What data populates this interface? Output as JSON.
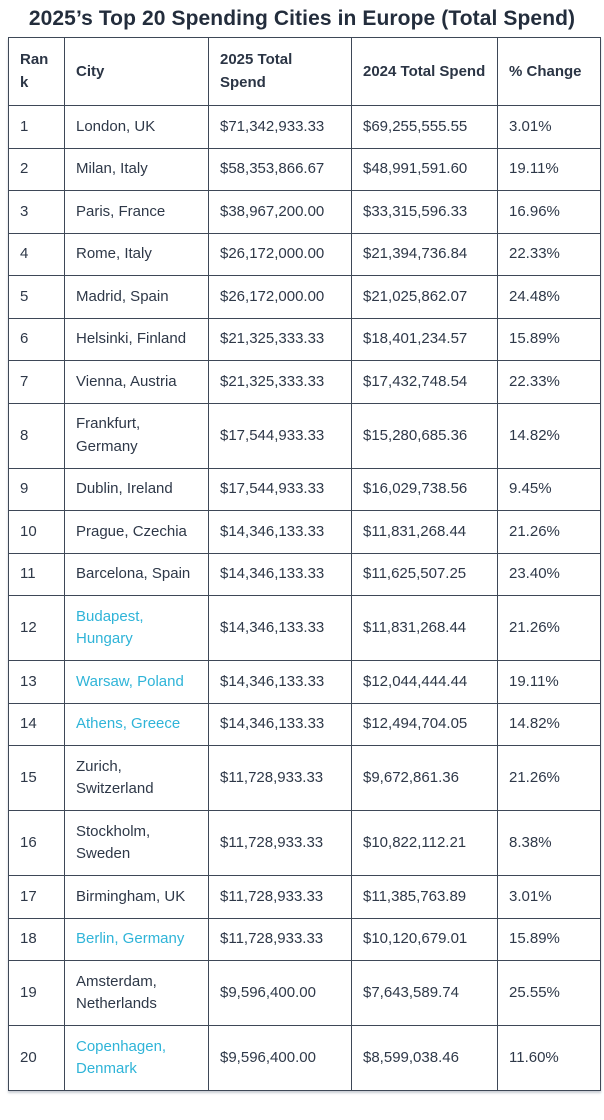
{
  "page_title": "2025’s Top 20 Spending Cities in Europe (Total Spend)",
  "colors": {
    "accent_link": "#2fb4d8",
    "text": "#2e3848",
    "border": "#3e4857",
    "background": "#ffffff"
  },
  "chart_data": {
    "type": "table",
    "title": "2025’s Top 20 Spending Cities in Europe (Total Spend)",
    "columns": [
      "Rank",
      "City",
      "2025 Total Spend",
      "2024 Total Spend",
      "% Change"
    ],
    "rows": [
      {
        "rank": 1,
        "city": "London, UK",
        "spend_2025": "$71,342,933.33",
        "spend_2024": "$69,255,555.55",
        "pct_change": "3.01%",
        "city_is_link": false,
        "city_wraps": false
      },
      {
        "rank": 2,
        "city": "Milan, Italy",
        "spend_2025": "$58,353,866.67",
        "spend_2024": "$48,991,591.60",
        "pct_change": "19.11%",
        "city_is_link": false,
        "city_wraps": false
      },
      {
        "rank": 3,
        "city": "Paris, France",
        "spend_2025": "$38,967,200.00",
        "spend_2024": "$33,315,596.33",
        "pct_change": "16.96%",
        "city_is_link": false,
        "city_wraps": false
      },
      {
        "rank": 4,
        "city": "Rome, Italy",
        "spend_2025": "$26,172,000.00",
        "spend_2024": "$21,394,736.84",
        "pct_change": "22.33%",
        "city_is_link": false,
        "city_wraps": false
      },
      {
        "rank": 5,
        "city": "Madrid, Spain",
        "spend_2025": "$26,172,000.00",
        "spend_2024": "$21,025,862.07",
        "pct_change": "24.48%",
        "city_is_link": false,
        "city_wraps": false
      },
      {
        "rank": 6,
        "city": "Helsinki, Finland",
        "spend_2025": "$21,325,333.33",
        "spend_2024": "$18,401,234.57",
        "pct_change": "15.89%",
        "city_is_link": false,
        "city_wraps": false
      },
      {
        "rank": 7,
        "city": "Vienna, Austria",
        "spend_2025": "$21,325,333.33",
        "spend_2024": "$17,432,748.54",
        "pct_change": "22.33%",
        "city_is_link": false,
        "city_wraps": false
      },
      {
        "rank": 8,
        "city": "Frankfurt, Germany",
        "spend_2025": "$17,544,933.33",
        "spend_2024": "$15,280,685.36",
        "pct_change": "14.82%",
        "city_is_link": false,
        "city_wraps": true
      },
      {
        "rank": 9,
        "city": "Dublin, Ireland",
        "spend_2025": "$17,544,933.33",
        "spend_2024": "$16,029,738.56",
        "pct_change": "9.45%",
        "city_is_link": false,
        "city_wraps": false
      },
      {
        "rank": 10,
        "city": "Prague, Czechia",
        "spend_2025": "$14,346,133.33",
        "spend_2024": "$11,831,268.44",
        "pct_change": "21.26%",
        "city_is_link": false,
        "city_wraps": false
      },
      {
        "rank": 11,
        "city": "Barcelona, Spain",
        "spend_2025": "$14,346,133.33",
        "spend_2024": "$11,625,507.25",
        "pct_change": "23.40%",
        "city_is_link": false,
        "city_wraps": false
      },
      {
        "rank": 12,
        "city": "Budapest, Hungary",
        "spend_2025": "$14,346,133.33",
        "spend_2024": "$11,831,268.44",
        "pct_change": "21.26%",
        "city_is_link": true,
        "city_wraps": true
      },
      {
        "rank": 13,
        "city": "Warsaw, Poland",
        "spend_2025": "$14,346,133.33",
        "spend_2024": "$12,044,444.44",
        "pct_change": "19.11%",
        "city_is_link": true,
        "city_wraps": false
      },
      {
        "rank": 14,
        "city": "Athens, Greece",
        "spend_2025": "$14,346,133.33",
        "spend_2024": "$12,494,704.05",
        "pct_change": "14.82%",
        "city_is_link": true,
        "city_wraps": false
      },
      {
        "rank": 15,
        "city": "Zurich, Switzerland",
        "spend_2025": "$11,728,933.33",
        "spend_2024": "$9,672,861.36",
        "pct_change": "21.26%",
        "city_is_link": false,
        "city_wraps": true
      },
      {
        "rank": 16,
        "city": "Stockholm, Sweden",
        "spend_2025": "$11,728,933.33",
        "spend_2024": "$10,822,112.21",
        "pct_change": "8.38%",
        "city_is_link": false,
        "city_wraps": true
      },
      {
        "rank": 17,
        "city": "Birmingham, UK",
        "spend_2025": "$11,728,933.33",
        "spend_2024": "$11,385,763.89",
        "pct_change": "3.01%",
        "city_is_link": false,
        "city_wraps": false
      },
      {
        "rank": 18,
        "city": "Berlin, Germany",
        "spend_2025": "$11,728,933.33",
        "spend_2024": "$10,120,679.01",
        "pct_change": "15.89%",
        "city_is_link": true,
        "city_wraps": false
      },
      {
        "rank": 19,
        "city": "Amsterdam, Netherlands",
        "spend_2025": "$9,596,400.00",
        "spend_2024": "$7,643,589.74",
        "pct_change": "25.55%",
        "city_is_link": false,
        "city_wraps": true
      },
      {
        "rank": 20,
        "city": "Copenhagen, Denmark",
        "spend_2025": "$9,596,400.00",
        "spend_2024": "$8,599,038.46",
        "pct_change": "11.60%",
        "city_is_link": true,
        "city_wraps": true
      }
    ]
  }
}
